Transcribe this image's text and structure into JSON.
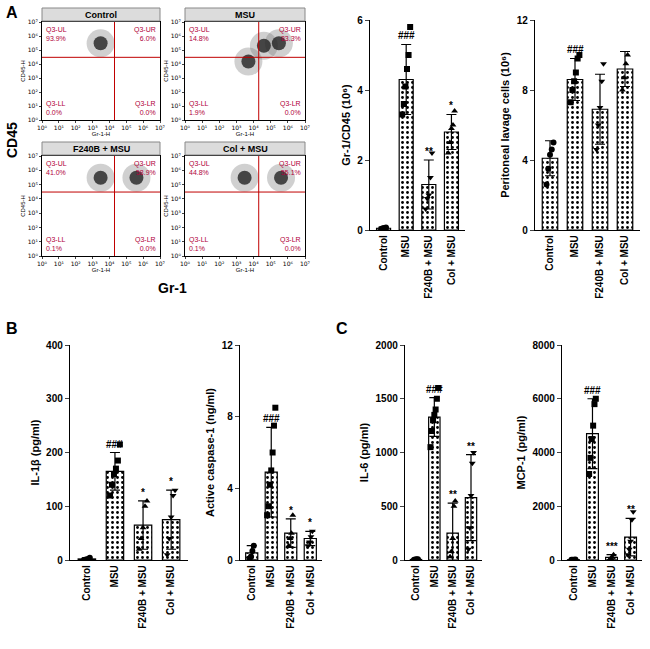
{
  "panel_labels": [
    {
      "text": "A"
    },
    {
      "text": "B"
    },
    {
      "text": "C"
    }
  ],
  "shared_titles": {
    "y": "CD45",
    "x": "Gr-1"
  },
  "chart_data": [
    {
      "type": "scatter",
      "title": "Control",
      "x_label": "Gr-1-H",
      "y_label": "CD45-H",
      "log": true,
      "xlim": [
        1,
        10000000
      ],
      "ylim": [
        1,
        10000000
      ],
      "xticks": [
        {
          "value": 1,
          "label": "10⁰"
        },
        {
          "value": 10,
          "label": "10¹"
        },
        {
          "value": 100,
          "label": "10²"
        },
        {
          "value": 1000,
          "label": "10³"
        },
        {
          "value": 10000,
          "label": "10⁴"
        },
        {
          "value": 100000,
          "label": "10⁵"
        },
        {
          "value": 1000000,
          "label": "10⁶"
        },
        {
          "value": 10000000,
          "label": "10⁷"
        }
      ],
      "yticks": [
        {
          "value": 1,
          "label": "10⁰"
        },
        {
          "value": 10,
          "label": "10¹"
        },
        {
          "value": 100,
          "label": "10²"
        },
        {
          "value": 1000,
          "label": "10³"
        },
        {
          "value": 10000,
          "label": "10⁴"
        },
        {
          "value": 100000,
          "label": "10⁵"
        },
        {
          "value": 1000000,
          "label": "10⁶"
        },
        {
          "value": 10000000,
          "label": "10⁷"
        }
      ],
      "quadrant_lines": {
        "x": 20000,
        "y": 30000
      },
      "quadrants": [
        {
          "name": "Q3-UL",
          "value": 93.9,
          "label": "93.9%"
        },
        {
          "name": "Q3-UR",
          "value": 6.0,
          "label": "6.0%"
        },
        {
          "name": "Q3-LL",
          "value": 0.0,
          "label": "0.0%"
        },
        {
          "name": "Q3-LR",
          "value": 0.0,
          "label": "0.0%"
        }
      ],
      "x": [
        3000
      ],
      "y": [
        300000
      ]
    },
    {
      "type": "scatter",
      "title": "MSU",
      "x_label": "Gr-1-H",
      "y_label": "CD45-H",
      "log": true,
      "xlim": [
        1,
        10000000
      ],
      "ylim": [
        1,
        10000000
      ],
      "xticks": [
        {
          "value": 1,
          "label": "10⁰"
        },
        {
          "value": 10,
          "label": "10¹"
        },
        {
          "value": 100,
          "label": "10²"
        },
        {
          "value": 1000,
          "label": "10³"
        },
        {
          "value": 10000,
          "label": "10⁴"
        },
        {
          "value": 100000,
          "label": "10⁵"
        },
        {
          "value": 1000000,
          "label": "10⁶"
        },
        {
          "value": 10000000,
          "label": "10⁷"
        }
      ],
      "yticks": [
        {
          "value": 1,
          "label": "10⁰"
        },
        {
          "value": 10,
          "label": "10¹"
        },
        {
          "value": 100,
          "label": "10²"
        },
        {
          "value": 1000,
          "label": "10³"
        },
        {
          "value": 10000,
          "label": "10⁴"
        },
        {
          "value": 100000,
          "label": "10⁵"
        },
        {
          "value": 1000000,
          "label": "10⁶"
        },
        {
          "value": 10000000,
          "label": "10⁷"
        }
      ],
      "quadrant_lines": {
        "x": 20000,
        "y": 30000
      },
      "quadrants": [
        {
          "name": "Q3-UL",
          "value": 14.8,
          "label": "14.8%"
        },
        {
          "name": "Q3-UR",
          "value": 83.3,
          "label": "83.3%"
        },
        {
          "name": "Q3-LL",
          "value": 1.9,
          "label": "1.9%"
        },
        {
          "name": "Q3-LR",
          "value": 0.0,
          "label": "0.0%"
        }
      ],
      "x": [
        300000,
        40000,
        5000
      ],
      "y": [
        300000,
        200000,
        15000
      ]
    },
    {
      "type": "scatter",
      "title": "F240B + MSU",
      "x_label": "Gr-1-H",
      "y_label": "CD45-H",
      "log": true,
      "xlim": [
        1,
        10000000
      ],
      "ylim": [
        1,
        10000000
      ],
      "xticks": [
        {
          "value": 1,
          "label": "10⁰"
        },
        {
          "value": 10,
          "label": "10¹"
        },
        {
          "value": 100,
          "label": "10²"
        },
        {
          "value": 1000,
          "label": "10³"
        },
        {
          "value": 10000,
          "label": "10⁴"
        },
        {
          "value": 100000,
          "label": "10⁵"
        },
        {
          "value": 1000000,
          "label": "10⁶"
        },
        {
          "value": 10000000,
          "label": "10⁷"
        }
      ],
      "yticks": [
        {
          "value": 1,
          "label": "10⁰"
        },
        {
          "value": 10,
          "label": "10¹"
        },
        {
          "value": 100,
          "label": "10²"
        },
        {
          "value": 1000,
          "label": "10³"
        },
        {
          "value": 10000,
          "label": "10⁴"
        },
        {
          "value": 100000,
          "label": "10⁵"
        },
        {
          "value": 1000000,
          "label": "10⁶"
        },
        {
          "value": 10000000,
          "label": "10⁷"
        }
      ],
      "quadrant_lines": {
        "x": 20000,
        "y": 30000
      },
      "quadrants": [
        {
          "name": "Q3-UL",
          "value": 41.0,
          "label": "41.0%"
        },
        {
          "name": "Q3-UR",
          "value": 58.9,
          "label": "58.9%"
        },
        {
          "name": "Q3-LL",
          "value": 0.1,
          "label": "0.1%"
        },
        {
          "name": "Q3-LR",
          "value": 0.0,
          "label": "0.0%"
        }
      ],
      "x": [
        3000,
        400000
      ],
      "y": [
        300000,
        300000
      ]
    },
    {
      "type": "scatter",
      "title": "Col + MSU",
      "x_label": "Gr-1-H",
      "y_label": "CD45-H",
      "log": true,
      "xlim": [
        1,
        10000000
      ],
      "ylim": [
        1,
        10000000
      ],
      "xticks": [
        {
          "value": 1,
          "label": "10⁰"
        },
        {
          "value": 10,
          "label": "10¹"
        },
        {
          "value": 100,
          "label": "10²"
        },
        {
          "value": 1000,
          "label": "10³"
        },
        {
          "value": 10000,
          "label": "10⁴"
        },
        {
          "value": 100000,
          "label": "10⁵"
        },
        {
          "value": 1000000,
          "label": "10⁶"
        },
        {
          "value": 10000000,
          "label": "10⁷"
        }
      ],
      "yticks": [
        {
          "value": 1,
          "label": "10⁰"
        },
        {
          "value": 10,
          "label": "10¹"
        },
        {
          "value": 100,
          "label": "10²"
        },
        {
          "value": 1000,
          "label": "10³"
        },
        {
          "value": 10000,
          "label": "10⁴"
        },
        {
          "value": 100000,
          "label": "10⁵"
        },
        {
          "value": 1000000,
          "label": "10⁶"
        },
        {
          "value": 10000000,
          "label": "10⁷"
        }
      ],
      "quadrant_lines": {
        "x": 20000,
        "y": 30000
      },
      "quadrants": [
        {
          "name": "Q3-UL",
          "value": 44.8,
          "label": "44.8%"
        },
        {
          "name": "Q3-UR",
          "value": 55.1,
          "label": "55.1%"
        },
        {
          "name": "Q3-LL",
          "value": 0.1,
          "label": "0.1%"
        },
        {
          "name": "Q3-LR",
          "value": 0.0,
          "label": "0.0%"
        }
      ],
      "x": [
        3000,
        400000
      ],
      "y": [
        300000,
        300000
      ]
    },
    {
      "type": "bar",
      "y_label": "Gr-1/CD45 (10⁶)",
      "categories": [
        "Control",
        "MSU",
        "F240B + MSU",
        "Col + MSU"
      ],
      "values": [
        0.05,
        4.3,
        1.3,
        2.8
      ],
      "errors": [
        0.03,
        1.0,
        0.7,
        0.5
      ],
      "points": [
        [
          0.03,
          0.05,
          0.06,
          0.07
        ],
        [
          3.3,
          3.6,
          4.1,
          4.6,
          5.0,
          5.8
        ],
        [
          0.6,
          0.9,
          1.0,
          1.5,
          2.2
        ],
        [
          2.2,
          2.5,
          2.9,
          3.0,
          3.4
        ]
      ],
      "markers": [
        "circle",
        "square",
        "triangle-down",
        "triangle-up"
      ],
      "significance": [
        null,
        "###",
        "**",
        "*"
      ],
      "ylim": [
        0,
        6
      ],
      "yticks": [
        0,
        2,
        4,
        6
      ]
    },
    {
      "type": "bar",
      "y_label": "Peritoneal lavage cells (10⁶)",
      "categories": [
        "Control",
        "MSU",
        "F240B + MSU",
        "Col + MSU"
      ],
      "values": [
        4.1,
        8.6,
        6.9,
        9.2
      ],
      "errors": [
        1.0,
        1.2,
        2.0,
        1.0
      ],
      "points": [
        [
          2.6,
          3.5,
          4.3,
          4.6,
          5.0
        ],
        [
          7.3,
          8.0,
          8.5,
          9.0,
          9.8,
          10.0
        ],
        [
          4.6,
          6.0,
          7.0,
          8.5,
          9.5
        ],
        [
          8.0,
          8.7,
          9.5,
          10.0
        ]
      ],
      "markers": [
        "circle",
        "square",
        "triangle-down",
        "triangle-up"
      ],
      "significance": [
        null,
        "###",
        null,
        null
      ],
      "ylim": [
        0,
        12
      ],
      "yticks": [
        0,
        4,
        8,
        12
      ]
    },
    {
      "type": "bar",
      "y_label": "IL-1β (pg/ml)",
      "categories": [
        "Control",
        "MSU",
        "F240B + MSU",
        "Col + MSU"
      ],
      "values": [
        2,
        165,
        65,
        75
      ],
      "errors": [
        2,
        35,
        45,
        55
      ],
      "points": [
        [
          0,
          1,
          2,
          4
        ],
        [
          120,
          140,
          160,
          170,
          185,
          215
        ],
        [
          20,
          40,
          60,
          100,
          110
        ],
        [
          10,
          40,
          80,
          120,
          130
        ]
      ],
      "markers": [
        "circle",
        "square",
        "triangle-up",
        "triangle-down"
      ],
      "significance": [
        null,
        "###",
        "*",
        "*"
      ],
      "ylim": [
        0,
        400
      ],
      "yticks": [
        0,
        100,
        200,
        300,
        400
      ]
    },
    {
      "type": "bar",
      "y_label": "Active caspase-1 (ng/ml)",
      "categories": [
        "Control",
        "MSU",
        "F240B + MSU",
        "Col + MSU"
      ],
      "values": [
        0.4,
        4.9,
        1.5,
        1.2
      ],
      "errors": [
        0.4,
        2.5,
        0.8,
        0.4
      ],
      "points": [
        [
          0.1,
          0.2,
          0.5,
          0.8
        ],
        [
          2.5,
          3.0,
          4.2,
          5.0,
          6.0,
          7.5,
          8.5
        ],
        [
          0.8,
          1.2,
          1.5,
          2.5
        ],
        [
          0.8,
          1.0,
          1.3,
          1.6
        ]
      ],
      "markers": [
        "circle",
        "square",
        "triangle-up",
        "triangle-down"
      ],
      "significance": [
        null,
        "###",
        "*",
        "*"
      ],
      "ylim": [
        0,
        12
      ],
      "yticks": [
        0,
        4,
        8,
        12
      ]
    },
    {
      "type": "bar",
      "y_label": "IL-6 (pg/ml)",
      "categories": [
        "Control",
        "MSU",
        "F240B + MSU",
        "Col + MSU"
      ],
      "values": [
        5,
        1330,
        250,
        580
      ],
      "errors": [
        3,
        180,
        280,
        400
      ],
      "points": [
        [
          2,
          4,
          6,
          8
        ],
        [
          1050,
          1200,
          1300,
          1350,
          1400,
          1500,
          1600
        ],
        [
          30,
          80,
          200,
          500,
          550
        ],
        [
          100,
          300,
          600,
          900,
          1000
        ]
      ],
      "markers": [
        "circle",
        "square",
        "triangle-up",
        "triangle-down"
      ],
      "significance": [
        null,
        "###",
        "**",
        "**"
      ],
      "ylim": [
        0,
        2000
      ],
      "yticks": [
        0,
        500,
        1000,
        1500,
        2000
      ]
    },
    {
      "type": "bar",
      "y_label": "MCP-1 (pg/ml)",
      "categories": [
        "Control",
        "MSU",
        "F240B + MSU",
        "Col + MSU"
      ],
      "values": [
        10,
        4700,
        100,
        850
      ],
      "errors": [
        5,
        1300,
        100,
        700
      ],
      "points": [
        [
          5,
          8,
          12,
          15
        ],
        [
          3200,
          3800,
          4500,
          5000,
          5800,
          6000
        ],
        [
          20,
          60,
          100,
          200
        ],
        [
          200,
          400,
          700,
          1500,
          1800
        ]
      ],
      "markers": [
        "circle",
        "square",
        "triangle-up",
        "triangle-down"
      ],
      "significance": [
        null,
        "###",
        "***",
        "**"
      ],
      "ylim": [
        0,
        8000
      ],
      "yticks": [
        0,
        2000,
        4000,
        6000,
        8000
      ]
    }
  ]
}
